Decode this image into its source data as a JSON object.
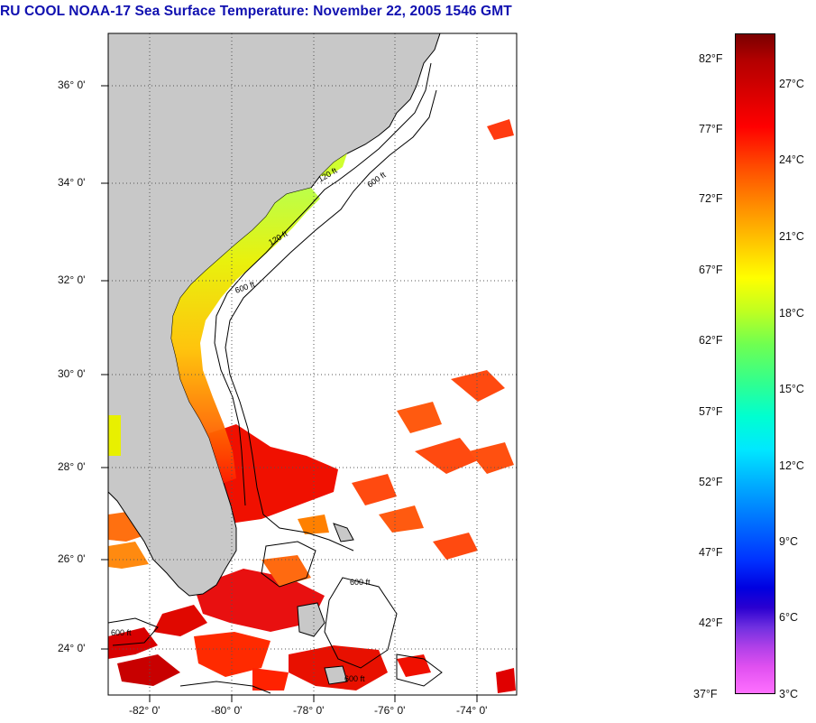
{
  "title": "RU COOL  NOAA-17  Sea Surface Temperature:  November 22, 2005 1546 GMT",
  "axes": {
    "lat_labels": [
      "36° 0'",
      "34° 0'",
      "32° 0'",
      "30° 0'",
      "28° 0'",
      "26° 0'",
      "24° 0'"
    ],
    "lon_labels": [
      "-82° 0'",
      "-80° 0'",
      "-78° 0'",
      "-76° 0'",
      "-74° 0'"
    ]
  },
  "isobaths": [
    "120 ft",
    "600 ft"
  ],
  "colorbar": {
    "fahrenheit": [
      "82°F",
      "77°F",
      "72°F",
      "67°F",
      "62°F",
      "57°F",
      "52°F",
      "47°F",
      "42°F",
      "37°F"
    ],
    "celsius": [
      "27°C",
      "24°C",
      "21°C",
      "18°C",
      "15°C",
      "12°C",
      "9°C",
      "6°C",
      "3°C"
    ]
  },
  "colors": {
    "land": "#c8c8c8",
    "title": "#1010b0",
    "warm": "#ff1a00",
    "coast_cool": "#f0e000"
  }
}
